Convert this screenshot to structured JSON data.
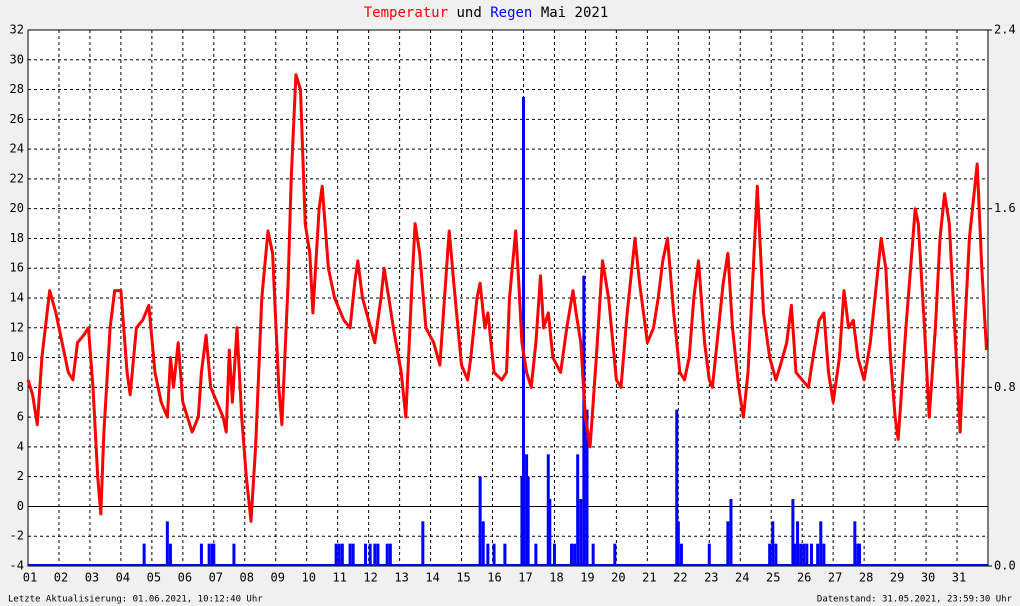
{
  "chart_data": {
    "type": "combo",
    "title": [
      {
        "text": "Temperatur",
        "color": "#ff0000"
      },
      {
        "text": "und",
        "color": "#000000"
      },
      {
        "text": "Regen",
        "color": "#0000ff"
      },
      {
        "text": "Mai 2021",
        "color": "#000000"
      }
    ],
    "footer_left": "Letzte Aktualisierung: 01.06.2021, 10:12:40 Uhr",
    "footer_right": "Datenstand: 31.05.2021, 23:59:30 Uhr",
    "xlim": [
      1,
      32
    ],
    "xticks": [
      {
        "value": 1,
        "label": "01"
      },
      {
        "value": 2,
        "label": "02"
      },
      {
        "value": 3,
        "label": "03"
      },
      {
        "value": 4,
        "label": "04"
      },
      {
        "value": 5,
        "label": "05"
      },
      {
        "value": 6,
        "label": "06"
      },
      {
        "value": 7,
        "label": "07"
      },
      {
        "value": 8,
        "label": "08"
      },
      {
        "value": 9,
        "label": "09"
      },
      10,
      11,
      12,
      13,
      14,
      15,
      16,
      17,
      18,
      19,
      20,
      21,
      22,
      23,
      24,
      25,
      26,
      27,
      28,
      29,
      30,
      31
    ],
    "ylim": [
      -4,
      32
    ],
    "yticks": [
      -4,
      -2,
      0,
      2,
      4,
      6,
      8,
      10,
      12,
      14,
      16,
      18,
      20,
      22,
      24,
      26,
      28,
      30,
      32
    ],
    "y2lim": [
      0,
      2.4
    ],
    "y2ticks": [
      {
        "value": 0,
        "label": "0.0"
      },
      0.8,
      1.6,
      2.4
    ],
    "grid": true,
    "series": [
      {
        "name": "Temperatur",
        "type": "line",
        "color": "#ff0000",
        "x": [
          1.0,
          1.15,
          1.3,
          1.45,
          1.7,
          1.9,
          2.1,
          2.3,
          2.45,
          2.6,
          2.8,
          2.95,
          3.1,
          3.25,
          3.35,
          3.45,
          3.65,
          3.8,
          4.0,
          4.2,
          4.3,
          4.5,
          4.7,
          4.9,
          5.1,
          5.3,
          5.5,
          5.6,
          5.7,
          5.85,
          6.0,
          6.3,
          6.5,
          6.6,
          6.75,
          6.9,
          7.1,
          7.3,
          7.4,
          7.5,
          7.6,
          7.75,
          7.9,
          8.05,
          8.2,
          8.35,
          8.55,
          8.75,
          8.9,
          9.1,
          9.2,
          9.4,
          9.5,
          9.65,
          9.8,
          9.95,
          10.1,
          10.2,
          10.4,
          10.5,
          10.7,
          10.9,
          11.2,
          11.4,
          11.55,
          11.65,
          11.8,
          12.0,
          12.2,
          12.4,
          12.5,
          12.65,
          12.8,
          13.05,
          13.2,
          13.4,
          13.5,
          13.65,
          13.85,
          14.1,
          14.3,
          14.45,
          14.6,
          14.75,
          15.0,
          15.2,
          15.3,
          15.5,
          15.6,
          15.75,
          15.85,
          16.05,
          16.3,
          16.45,
          16.55,
          16.75,
          16.85,
          16.95,
          17.1,
          17.25,
          17.4,
          17.55,
          17.65,
          17.8,
          17.95,
          18.2,
          18.4,
          18.6,
          18.7,
          18.85,
          19.0,
          19.15,
          19.35,
          19.55,
          19.75,
          20.0,
          20.15,
          20.35,
          20.6,
          20.75,
          21.0,
          21.2,
          21.35,
          21.5,
          21.65,
          21.85,
          22.05,
          22.2,
          22.35,
          22.5,
          22.65,
          22.85,
          23.0,
          23.1,
          23.3,
          23.45,
          23.6,
          23.75,
          23.95,
          24.1,
          24.25,
          24.4,
          24.55,
          24.75,
          24.95,
          25.15,
          25.3,
          25.5,
          25.65,
          25.8,
          26.0,
          26.2,
          26.35,
          26.55,
          26.7,
          26.85,
          27.0,
          27.2,
          27.35,
          27.5,
          27.65,
          27.8,
          28.0,
          28.2,
          28.4,
          28.55,
          28.7,
          28.85,
          29.0,
          29.1,
          29.35,
          29.5,
          29.65,
          29.75,
          29.95,
          30.1,
          30.3,
          30.45,
          30.6,
          30.75,
          30.95,
          31.1,
          31.25,
          31.4,
          31.65,
          31.8,
          31.95
        ],
        "values": [
          8.5,
          7.5,
          5.5,
          10,
          14.5,
          13,
          11,
          9,
          8.5,
          11,
          11.5,
          12,
          8,
          2,
          -0.5,
          5,
          12,
          14.5,
          14.5,
          9,
          7.5,
          12,
          12.5,
          13.5,
          9,
          7,
          6,
          10,
          8,
          11,
          7,
          5,
          6,
          9,
          11.5,
          8,
          7,
          6,
          5,
          10.5,
          7,
          12,
          6,
          2,
          -1,
          4,
          14,
          18.5,
          17,
          8,
          5.5,
          15,
          22,
          29,
          28,
          19,
          17,
          13,
          20,
          21.5,
          16,
          14,
          12.5,
          12,
          15,
          16.5,
          14,
          12.5,
          11,
          14,
          16,
          14,
          12,
          9,
          6,
          15,
          19,
          17,
          12,
          11,
          9.5,
          14,
          18.5,
          15,
          9.5,
          8.5,
          10,
          14,
          15,
          12,
          13,
          9,
          8.5,
          9,
          14,
          18.5,
          15,
          11,
          9,
          8,
          11,
          15.5,
          12,
          13,
          10,
          9,
          12,
          14.5,
          13,
          11,
          6,
          4,
          10,
          16.5,
          14,
          8.5,
          8,
          13,
          18,
          15,
          11,
          12,
          14,
          16.5,
          18,
          13,
          9,
          8.5,
          10,
          14,
          16.5,
          11,
          8.5,
          8,
          12,
          15,
          17,
          12,
          8,
          6,
          9,
          15,
          21.5,
          13,
          10,
          8.5,
          9.5,
          11,
          13.5,
          9,
          8.5,
          8,
          10,
          12.5,
          13,
          9,
          7,
          10,
          14.5,
          12,
          12.5,
          10,
          8.5,
          11,
          15,
          18,
          16,
          10,
          6,
          4.5,
          12,
          16,
          20,
          19,
          12,
          6,
          12,
          18,
          21,
          19,
          11,
          5,
          12,
          18,
          23,
          16,
          10.5
        ]
      },
      {
        "name": "Regen",
        "type": "bar",
        "axis": "y2",
        "color": "#0000ff",
        "x": [
          4.75,
          5.5,
          5.6,
          6.6,
          6.85,
          6.95,
          7.0,
          7.65,
          10.95,
          11.05,
          11.15,
          11.4,
          11.5,
          11.9,
          12.05,
          12.2,
          12.3,
          12.6,
          12.7,
          13.75,
          15.6,
          15.7,
          15.85,
          16.05,
          16.4,
          16.95,
          17.0,
          17.1,
          17.15,
          17.4,
          17.8,
          17.85,
          18.0,
          18.55,
          18.65,
          18.75,
          18.85,
          18.95,
          19.05,
          19.25,
          19.95,
          21.95,
          22.0,
          22.1,
          23.0,
          23.6,
          23.7,
          24.95,
          25.05,
          25.15,
          25.7,
          25.75,
          25.85,
          25.95,
          26.05,
          26.15,
          26.3,
          26.5,
          26.6,
          26.7,
          27.7,
          27.8,
          27.85
        ],
        "values": [
          0.1,
          0.2,
          0.1,
          0.1,
          0.1,
          0.1,
          0.1,
          0.1,
          0.1,
          0.1,
          0.1,
          0.1,
          0.1,
          0.1,
          0.1,
          0.1,
          0.1,
          0.1,
          0.1,
          0.2,
          0.4,
          0.2,
          0.1,
          0.1,
          0.1,
          0.4,
          2.1,
          0.5,
          0.4,
          0.1,
          0.5,
          0.3,
          0.1,
          0.1,
          0.1,
          0.5,
          0.3,
          1.3,
          0.7,
          0.1,
          0.1,
          0.7,
          0.2,
          0.1,
          0.1,
          0.2,
          0.3,
          0.1,
          0.2,
          0.1,
          0.3,
          0.1,
          0.2,
          0.1,
          0.1,
          0.1,
          0.1,
          0.1,
          0.2,
          0.1,
          0.2,
          0.1,
          0.1
        ]
      }
    ]
  }
}
